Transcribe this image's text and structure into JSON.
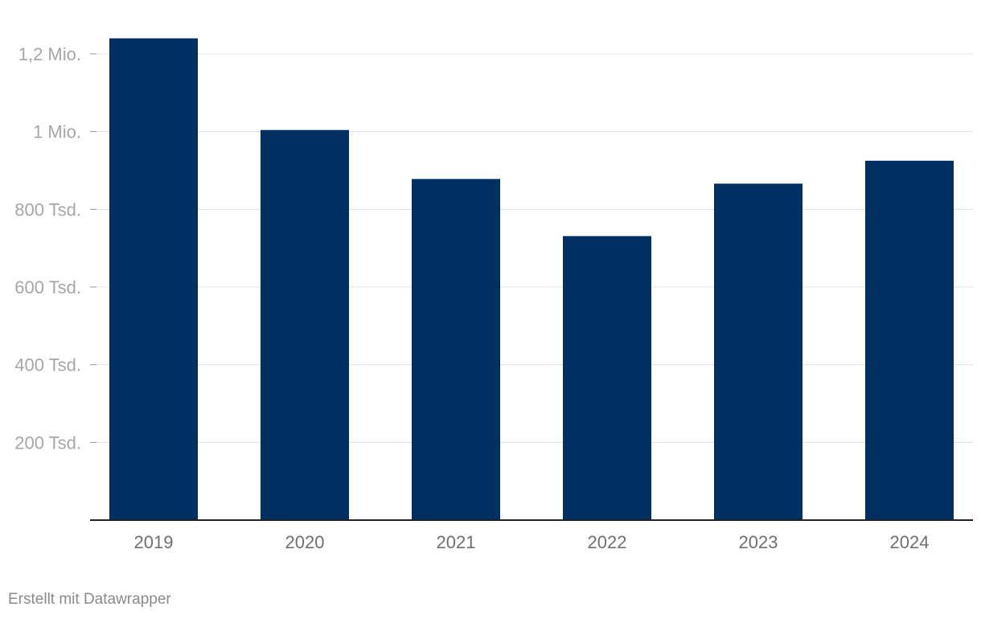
{
  "chart_data": {
    "type": "bar",
    "categories": [
      "2019",
      "2020",
      "2021",
      "2022",
      "2023",
      "2024"
    ],
    "values": [
      1240000,
      1004000,
      878000,
      731000,
      866000,
      925000
    ],
    "title": "",
    "xlabel": "",
    "ylabel": "",
    "ylim": [
      0,
      1200000
    ],
    "yticks": [
      {
        "value": 1200000,
        "label": "1,2 Mio."
      },
      {
        "value": 1000000,
        "label": "1 Mio."
      },
      {
        "value": 800000,
        "label": "800 Tsd."
      },
      {
        "value": 600000,
        "label": "600 Tsd."
      },
      {
        "value": 400000,
        "label": "400 Tsd."
      },
      {
        "value": 200000,
        "label": "200 Tsd."
      }
    ],
    "grid": true,
    "bar_color": "#002f62"
  },
  "footer": {
    "credit": "Erstellt mit Datawrapper"
  }
}
